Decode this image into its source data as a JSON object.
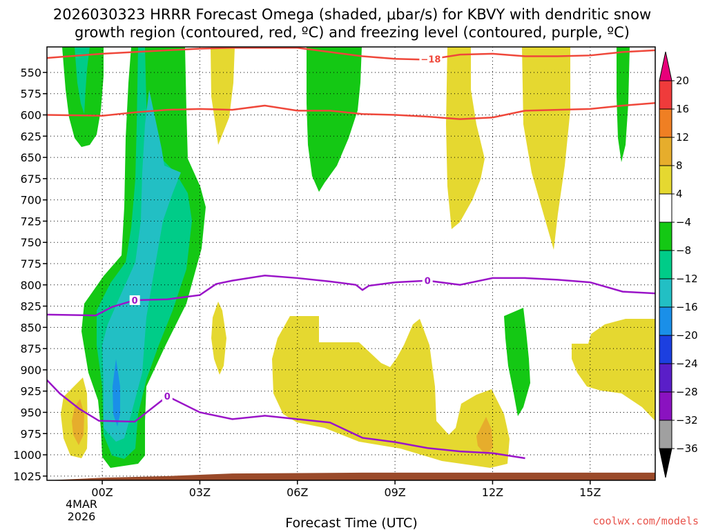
{
  "chart_data": {
    "type": "heatmap",
    "title_line1": "2026030323 HRRR Forecast Omega (shaded, μbar/s) for KBVY with dendritic snow",
    "title_line2": "growth region (contoured, red, ºC) and freezing level (contoured, purple, ºC)",
    "xlabel": "Forecast Time (UTC)",
    "x_unit": "hours since 00Z 4 Mar 2026",
    "xlim": [
      -1.7,
      17.0
    ],
    "x_ticks": [
      {
        "hour": 0,
        "label": "00Z",
        "sub1": "4MAR",
        "sub2": "2026"
      },
      {
        "hour": 3,
        "label": "03Z"
      },
      {
        "hour": 6,
        "label": "06Z"
      },
      {
        "hour": 9,
        "label": "09Z"
      },
      {
        "hour": 12,
        "label": "12Z"
      },
      {
        "hour": 15,
        "label": "15Z"
      }
    ],
    "y_unit": "hPa",
    "ylim": [
      1030,
      520
    ],
    "y_ticks": [
      550,
      575,
      600,
      625,
      650,
      675,
      700,
      725,
      750,
      775,
      800,
      825,
      850,
      875,
      900,
      925,
      950,
      975,
      1000,
      1025
    ],
    "grid": "dotted",
    "colorbar": {
      "labels": [
        "20",
        "16",
        "12",
        "8",
        "4",
        "−4",
        "−8",
        "−12",
        "−16",
        "−20",
        "−24",
        "−28",
        "−32",
        "−36"
      ],
      "colors": [
        "#e8007a",
        "#ef3b3b",
        "#ef7f23",
        "#e6ad2c",
        "#e5d830",
        "#ffffff",
        "#14c814",
        "#00cc88",
        "#22bfc4",
        "#1a8fe8",
        "#1c3fe0",
        "#5a1ec8",
        "#8a12c0",
        "#a0a0a0",
        "#000000"
      ]
    },
    "colors": {
      "omega_up_weak": "#14c814",
      "omega_up_mod": "#00cc88",
      "omega_up_strong": "#22bfc4",
      "omega_up_max": "#1a8fe8",
      "omega_down_weak": "#e5d830",
      "omega_down_mod": "#e6ad2c",
      "dendritic_contour": "#ef473a",
      "freezing_contour": "#9a14c8",
      "terrain": "#9a4a2a"
    },
    "contours": [
      {
        "name": "dgz_top",
        "value": -18,
        "label": "−18",
        "label_at_hour": 10.1,
        "points": [
          [
            -1.7,
            533
          ],
          [
            0,
            528
          ],
          [
            2,
            524
          ],
          [
            3,
            522
          ],
          [
            4,
            521
          ],
          [
            6,
            521
          ],
          [
            7,
            526
          ],
          [
            8,
            531
          ],
          [
            9,
            534
          ],
          [
            10,
            535
          ],
          [
            11,
            529
          ],
          [
            12,
            528
          ],
          [
            13,
            531
          ],
          [
            14,
            531
          ],
          [
            15,
            530
          ],
          [
            16,
            526
          ],
          [
            17,
            524
          ]
        ]
      },
      {
        "name": "dgz_bottom",
        "value": -12,
        "points": [
          [
            -1.7,
            600
          ],
          [
            0,
            601
          ],
          [
            1,
            597
          ],
          [
            2,
            594
          ],
          [
            3,
            593
          ],
          [
            4,
            594
          ],
          [
            5,
            589
          ],
          [
            6,
            595
          ],
          [
            7,
            595
          ],
          [
            8,
            599
          ],
          [
            9,
            600
          ],
          [
            10,
            602
          ],
          [
            11,
            605
          ],
          [
            12,
            603
          ],
          [
            13,
            595
          ],
          [
            14,
            594
          ],
          [
            15,
            593
          ],
          [
            16,
            589
          ],
          [
            17,
            586
          ]
        ]
      },
      {
        "name": "freezing_upper",
        "value": 0,
        "label": "0",
        "label_at_hours": [
          1.0,
          10.0
        ],
        "points": [
          [
            -1.7,
            835
          ],
          [
            -0.2,
            836
          ],
          [
            0.3,
            826
          ],
          [
            1,
            818
          ],
          [
            2,
            817
          ],
          [
            3,
            812
          ],
          [
            3.5,
            799
          ],
          [
            4,
            795
          ],
          [
            5,
            789
          ],
          [
            6,
            792
          ],
          [
            7,
            796
          ],
          [
            7.8,
            800
          ],
          [
            8,
            806
          ],
          [
            8.2,
            801
          ],
          [
            9,
            797
          ],
          [
            10,
            795
          ],
          [
            11,
            800
          ],
          [
            12,
            792
          ],
          [
            13,
            792
          ],
          [
            14,
            794
          ],
          [
            15,
            797
          ],
          [
            16,
            808
          ],
          [
            17,
            810
          ]
        ]
      },
      {
        "name": "freezing_lower",
        "value": 0,
        "label": "0",
        "label_at_hour": 2.0,
        "points": [
          [
            -1.7,
            912
          ],
          [
            -1.3,
            928
          ],
          [
            -0.7,
            946
          ],
          [
            -0.1,
            960
          ],
          [
            1,
            961
          ],
          [
            2,
            931
          ],
          [
            3,
            950
          ],
          [
            4,
            958
          ],
          [
            5,
            954
          ],
          [
            6,
            958
          ],
          [
            7,
            962
          ],
          [
            8,
            980
          ],
          [
            9,
            985
          ],
          [
            10,
            992
          ],
          [
            11,
            996
          ],
          [
            12,
            998
          ],
          [
            13,
            1004
          ]
        ]
      }
    ],
    "terrain_top_hpa": [
      [
        -1.7,
        1030
      ],
      [
        0,
        1027
      ],
      [
        2,
        1025
      ],
      [
        4,
        1022
      ],
      [
        8,
        1021
      ],
      [
        12,
        1021
      ],
      [
        17,
        1021
      ]
    ]
  },
  "credit": "coolwx.com/models"
}
